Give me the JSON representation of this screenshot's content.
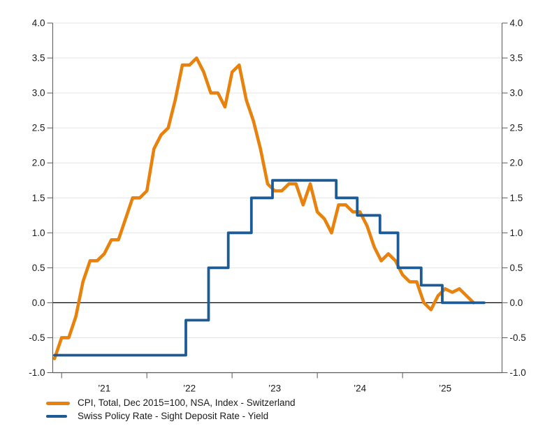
{
  "chart_data": {
    "type": "line",
    "title": "",
    "y_axis": {
      "min": -1.0,
      "max": 4.0,
      "step": 0.5,
      "sides": "both",
      "tick_labels": [
        "4.0",
        "3.5",
        "3.0",
        "2.5",
        "2.0",
        "1.5",
        "1.0",
        "0.5",
        "0.0",
        "-0.5",
        "-1.0"
      ]
    },
    "x_axis": {
      "start": "2020-11",
      "end": "2026-03",
      "ticks": [
        {
          "label": "’21",
          "date": "2021-01"
        },
        {
          "label": "’22",
          "date": "2022-01"
        },
        {
          "label": "’23",
          "date": "2023-01"
        },
        {
          "label": "’24",
          "date": "2024-01"
        },
        {
          "label": "’25",
          "date": "2025-01"
        }
      ]
    },
    "grid": "horizontal",
    "zero_line": true,
    "legend_position": "bottom-left",
    "series": [
      {
        "name": "CPI, Total, Dec 2015=100, NSA, Index - Switzerland",
        "type": "line",
        "color": "#E8820D",
        "frequency": "monthly",
        "start": "2020-12",
        "values": [
          -0.8,
          -0.5,
          -0.5,
          -0.2,
          0.3,
          0.6,
          0.6,
          0.7,
          0.9,
          0.9,
          1.2,
          1.5,
          1.5,
          1.6,
          2.2,
          2.4,
          2.5,
          2.9,
          3.4,
          3.4,
          3.5,
          3.3,
          3.0,
          3.0,
          2.8,
          3.3,
          3.4,
          2.9,
          2.6,
          2.2,
          1.7,
          1.6,
          1.6,
          1.7,
          1.7,
          1.4,
          1.7,
          1.3,
          1.2,
          1.0,
          1.4,
          1.4,
          1.3,
          1.3,
          1.1,
          0.8,
          0.6,
          0.7,
          0.6,
          0.4,
          0.3,
          0.3,
          0.0,
          -0.1,
          0.1,
          0.2,
          0.15,
          0.2,
          0.1,
          0.0
        ]
      },
      {
        "name": "Swiss Policy Rate - Sight Deposit Rate - Yield",
        "type": "step",
        "color": "#1D5B97",
        "changes": [
          {
            "date": "2020-12-01",
            "value": -0.75
          },
          {
            "date": "2022-06-16",
            "value": -0.25
          },
          {
            "date": "2022-09-22",
            "value": 0.5
          },
          {
            "date": "2022-12-15",
            "value": 1.0
          },
          {
            "date": "2023-03-23",
            "value": 1.5
          },
          {
            "date": "2023-06-22",
            "value": 1.75
          },
          {
            "date": "2024-03-21",
            "value": 1.5
          },
          {
            "date": "2024-06-20",
            "value": 1.25
          },
          {
            "date": "2024-09-26",
            "value": 1.0
          },
          {
            "date": "2024-12-12",
            "value": 0.5
          },
          {
            "date": "2025-03-20",
            "value": 0.25
          },
          {
            "date": "2025-06-19",
            "value": 0.0
          }
        ],
        "end": "2025-12-16"
      }
    ],
    "styles": {
      "background": "#FFFFFF",
      "axis_color": "#595959",
      "grid_color": "#E4E4E4",
      "zero_line_color": "#000000",
      "text_color": "#1A1A1A"
    }
  }
}
